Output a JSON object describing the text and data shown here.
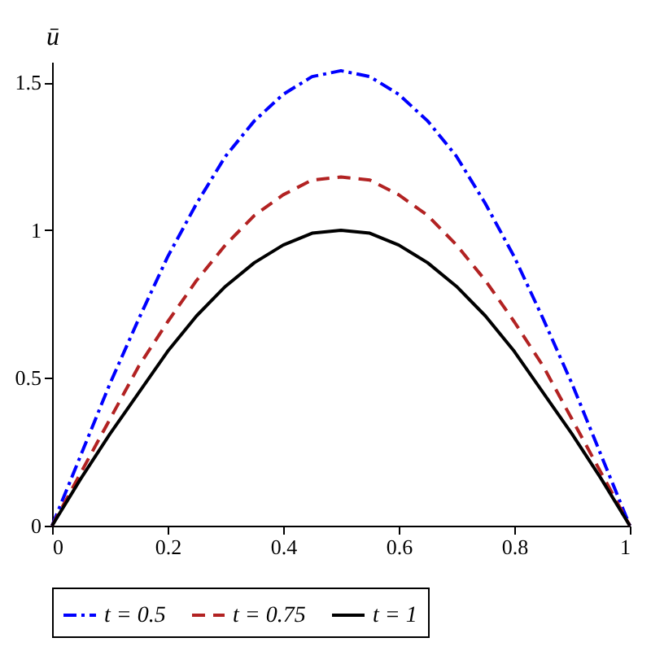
{
  "chart_data": {
    "type": "line",
    "ylabel": "ū",
    "xlim": [
      0,
      1
    ],
    "ylim": [
      0,
      1.57
    ],
    "xticks": [
      0,
      0.2,
      0.4,
      0.6,
      0.8,
      1
    ],
    "yticks": [
      0,
      0.5,
      1,
      1.5
    ],
    "grid": false,
    "legend": "bottom",
    "marker": "none",
    "x": [
      0,
      0.05,
      0.1,
      0.15,
      0.2,
      0.25,
      0.3,
      0.35,
      0.4,
      0.45,
      0.5,
      0.55,
      0.6,
      0.65,
      0.7,
      0.75,
      0.8,
      0.85,
      0.9,
      0.95,
      1
    ],
    "series": [
      {
        "name": "t = 0.5",
        "color": "#0000ff",
        "line_style": "dashdot",
        "values": [
          0,
          0.24,
          0.48,
          0.7,
          0.91,
          1.09,
          1.25,
          1.37,
          1.46,
          1.52,
          1.54,
          1.52,
          1.46,
          1.37,
          1.25,
          1.09,
          0.91,
          0.7,
          0.48,
          0.24,
          0
        ]
      },
      {
        "name": "t = 0.75",
        "color": "#b22222",
        "line_style": "dashed",
        "values": [
          0,
          0.18,
          0.36,
          0.54,
          0.69,
          0.83,
          0.95,
          1.05,
          1.12,
          1.17,
          1.18,
          1.17,
          1.12,
          1.05,
          0.95,
          0.83,
          0.69,
          0.54,
          0.36,
          0.18,
          0
        ]
      },
      {
        "name": "t = 1",
        "color": "#000000",
        "line_style": "solid",
        "values": [
          0,
          0.16,
          0.31,
          0.45,
          0.59,
          0.71,
          0.81,
          0.89,
          0.95,
          0.99,
          1.0,
          0.99,
          0.95,
          0.89,
          0.81,
          0.71,
          0.59,
          0.45,
          0.31,
          0.16,
          0
        ]
      }
    ]
  }
}
